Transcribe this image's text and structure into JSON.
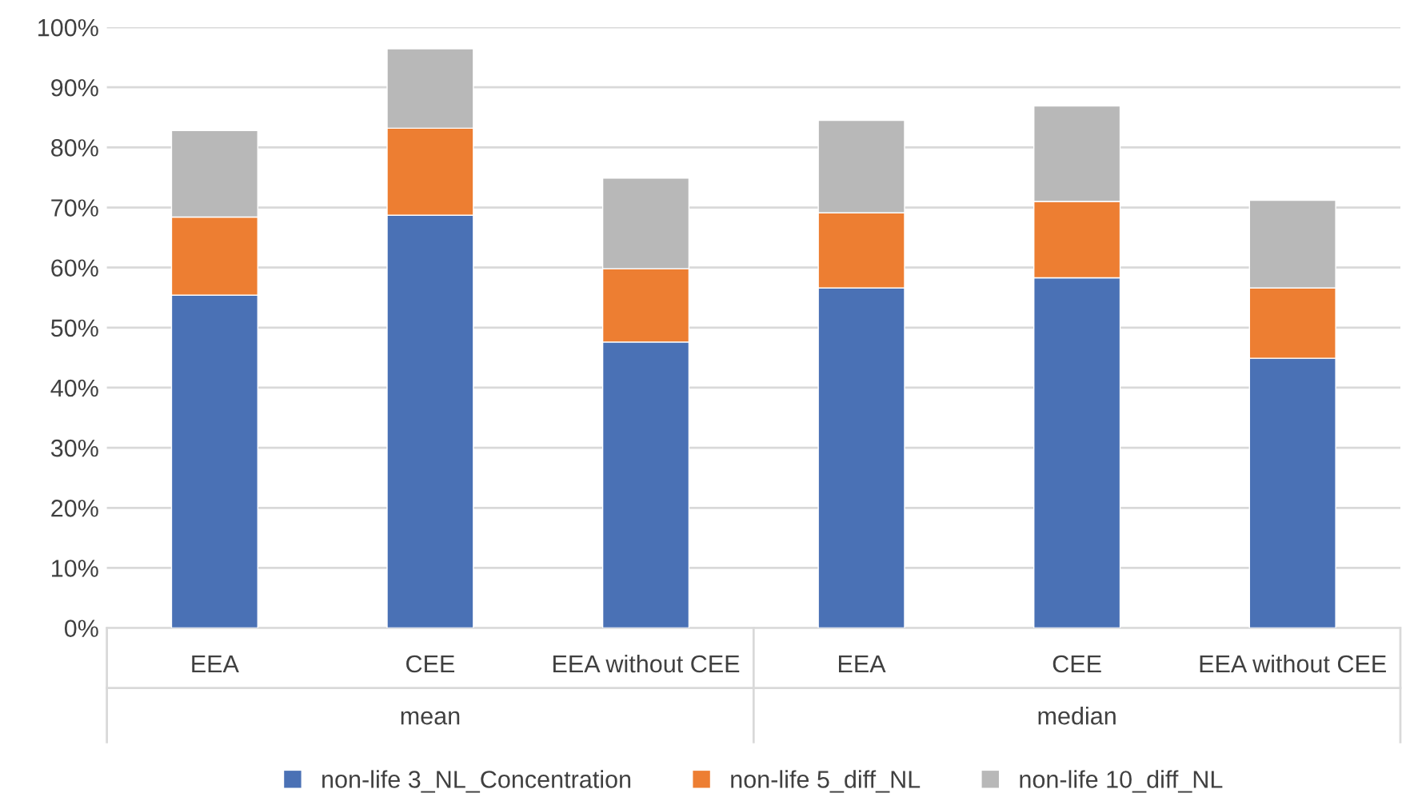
{
  "chart_data": {
    "type": "bar",
    "stacked": true,
    "categories": [
      "EEA",
      "CEE",
      "EEA without CEE",
      "EEA",
      "CEE",
      "EEA without CEE"
    ],
    "annotations": [
      "mean",
      "median"
    ],
    "series": [
      {
        "name": "non-life 3_NL_Concentration",
        "color": "#4a71b5",
        "values": [
          55.4,
          68.7,
          47.6,
          56.6,
          58.3,
          44.9
        ]
      },
      {
        "name": "non-life 5_diff_NL",
        "color": "#ed7e32",
        "values": [
          13.0,
          14.5,
          12.2,
          12.5,
          12.7,
          11.7
        ]
      },
      {
        "name": "non-life 10_diff_NL",
        "color": "#b8b8b8",
        "values": [
          14.4,
          13.2,
          15.1,
          15.4,
          15.9,
          14.6
        ]
      }
    ],
    "ylim": [
      0,
      100
    ],
    "yticks": [
      {
        "value": 0,
        "label": "0%"
      },
      {
        "value": 10,
        "label": "10%"
      },
      {
        "value": 20,
        "label": "20%"
      },
      {
        "value": 30,
        "label": "30%"
      },
      {
        "value": 40,
        "label": "40%"
      },
      {
        "value": 50,
        "label": "50%"
      },
      {
        "value": 60,
        "label": "60%"
      },
      {
        "value": 70,
        "label": "70%"
      },
      {
        "value": 80,
        "label": "80%"
      },
      {
        "value": 90,
        "label": "90%"
      },
      {
        "value": 100,
        "label": "100%"
      }
    ],
    "grid": "y",
    "legend": "bottom"
  }
}
